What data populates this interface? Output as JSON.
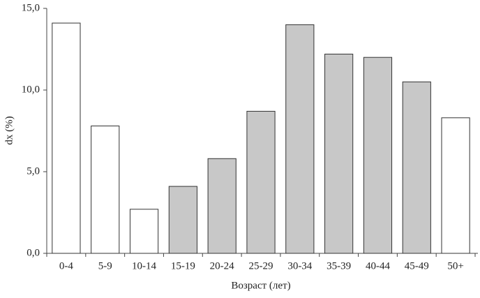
{
  "chart_data": {
    "type": "bar",
    "x_label": "Возраст (лет)",
    "y_label": "dx (%)",
    "categories": [
      "0-4",
      "5-9",
      "10-14",
      "15-19",
      "20-24",
      "25-29",
      "30-34",
      "35-39",
      "40-44",
      "45-49",
      "50+"
    ],
    "values": [
      14.1,
      7.8,
      2.7,
      4.1,
      5.8,
      8.7,
      14.0,
      12.2,
      12.0,
      10.5,
      8.3
    ],
    "colors": [
      "#ffffff",
      "#ffffff",
      "#ffffff",
      "#c8c8c8",
      "#c8c8c8",
      "#c8c8c8",
      "#c8c8c8",
      "#c8c8c8",
      "#c8c8c8",
      "#c8c8c8",
      "#ffffff"
    ],
    "ylim": [
      0,
      15
    ],
    "yticks": [
      {
        "value": 0,
        "label": "0,0"
      },
      {
        "value": 5,
        "label": "5,0"
      },
      {
        "value": 10,
        "label": "10,0"
      },
      {
        "value": 15,
        "label": "15,0"
      }
    ],
    "grid": false
  }
}
